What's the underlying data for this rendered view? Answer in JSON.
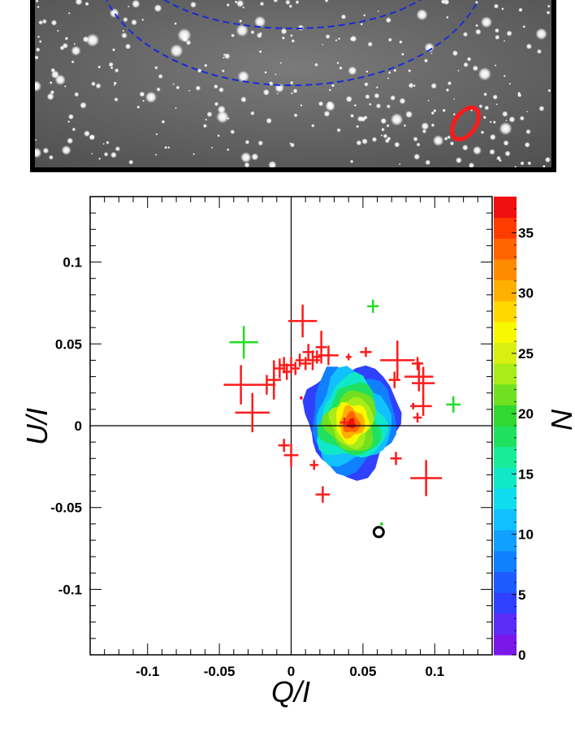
{
  "image_panel": {
    "ellipse_color_inner": "#1a2adc",
    "ellipse_color_outer": "#1a2adc",
    "marker_color": "#ff1a1a"
  },
  "chart_data": {
    "type": "scatter",
    "xlabel": "Q/I",
    "ylabel": "U/I",
    "xlim": [
      -0.14,
      0.14
    ],
    "ylim": [
      -0.14,
      0.14
    ],
    "x_ticks": [
      -0.1,
      -0.05,
      0,
      0.05,
      0.1
    ],
    "x_tick_labels": [
      "-0.1",
      "-0.05",
      "0",
      "0.05",
      "0.1"
    ],
    "y_ticks": [
      -0.1,
      -0.05,
      0,
      0.05,
      0.1
    ],
    "y_tick_labels": [
      "-0.1",
      "-0.05",
      "0",
      "0.05",
      "0.1"
    ],
    "grid": false,
    "reference_lines": {
      "x": 0,
      "y": 0
    },
    "colorbar": {
      "min": 0,
      "max": 38,
      "ticks": [
        0,
        5,
        10,
        15,
        20,
        25,
        30,
        35
      ],
      "tick_labels": [
        "0",
        "5",
        "10",
        "15",
        "20",
        "25",
        "30",
        "35"
      ],
      "colors": [
        "#7a18e8",
        "#5a2ef5",
        "#3040ff",
        "#1e5cff",
        "#1080ff",
        "#10a0ff",
        "#10c0ff",
        "#10dcf0",
        "#10e8c8",
        "#18ec98",
        "#20e060",
        "#30d830",
        "#70e020",
        "#a8ec18",
        "#d8f010",
        "#f8f800",
        "#ffd800",
        "#ffb000",
        "#ff8c00",
        "#ff6400",
        "#ff3c00",
        "#f01010"
      ]
    },
    "series": [
      {
        "color": "#ff1a1a",
        "points": [
          {
            "x": -0.035,
            "y": 0.025,
            "xerr": 0.012,
            "yerr": 0.012
          },
          {
            "x": -0.027,
            "y": 0.008,
            "xerr": 0.012,
            "yerr": 0.012
          },
          {
            "x": -0.017,
            "y": 0.025,
            "xerr": 0.006,
            "yerr": 0.006
          },
          {
            "x": -0.012,
            "y": 0.028,
            "xerr": 0.005,
            "yerr": 0.012
          },
          {
            "x": -0.008,
            "y": 0.035,
            "xerr": 0.004,
            "yerr": 0.006
          },
          {
            "x": -0.005,
            "y": 0.037,
            "xerr": 0.003,
            "yerr": 0.005
          },
          {
            "x": -0.003,
            "y": 0.033,
            "xerr": 0.003,
            "yerr": 0.005
          },
          {
            "x": 0,
            "y": 0.037,
            "xerr": 0.003,
            "yerr": 0.005
          },
          {
            "x": 0.003,
            "y": 0.035,
            "xerr": 0.003,
            "yerr": 0.004
          },
          {
            "x": 0.006,
            "y": 0.04,
            "xerr": 0.003,
            "yerr": 0.004
          },
          {
            "x": 0.01,
            "y": 0.038,
            "xerr": 0.004,
            "yerr": 0.004
          },
          {
            "x": 0.012,
            "y": 0.045,
            "xerr": 0.004,
            "yerr": 0.005
          },
          {
            "x": 0.015,
            "y": 0.04,
            "xerr": 0.005,
            "yerr": 0.006
          },
          {
            "x": 0.018,
            "y": 0.042,
            "xerr": 0.003,
            "yerr": 0.004
          },
          {
            "x": 0.021,
            "y": 0.048,
            "xerr": 0.004,
            "yerr": 0.01
          },
          {
            "x": 0.026,
            "y": 0.043,
            "xerr": 0.007,
            "yerr": 0.006
          },
          {
            "x": 0.008,
            "y": 0.064,
            "xerr": 0.01,
            "yerr": 0.01
          },
          {
            "x": 0.04,
            "y": 0.042,
            "xerr": 0.002,
            "yerr": 0.002
          },
          {
            "x": 0.052,
            "y": 0.045,
            "xerr": 0.004,
            "yerr": 0.003
          },
          {
            "x": 0.074,
            "y": 0.04,
            "xerr": 0.012,
            "yerr": 0.012
          },
          {
            "x": 0.072,
            "y": 0.028,
            "xerr": 0.004,
            "yerr": 0.005
          },
          {
            "x": 0.088,
            "y": 0.038,
            "xerr": 0.004,
            "yerr": 0.004
          },
          {
            "x": 0.089,
            "y": 0.03,
            "xerr": 0.01,
            "yerr": 0.009
          },
          {
            "x": 0.092,
            "y": 0.026,
            "xerr": 0.008,
            "yerr": 0.01
          },
          {
            "x": 0.092,
            "y": 0.012,
            "xerr": 0.006,
            "yerr": 0.006
          },
          {
            "x": 0.088,
            "y": 0.005,
            "xerr": 0.003,
            "yerr": 0.003
          },
          {
            "x": 0.085,
            "y": 0.012,
            "xerr": 0.002,
            "yerr": 0.002
          },
          {
            "x": 0.007,
            "y": 0.017,
            "xerr": 0.001,
            "yerr": 0.001
          },
          {
            "x": -0.005,
            "y": -0.012,
            "xerr": 0.004,
            "yerr": 0.004
          },
          {
            "x": 0.0,
            "y": -0.018,
            "xerr": 0.005,
            "yerr": 0.007
          },
          {
            "x": 0.016,
            "y": -0.024,
            "xerr": 0.003,
            "yerr": 0.003
          },
          {
            "x": 0.022,
            "y": -0.042,
            "xerr": 0.005,
            "yerr": 0.005
          },
          {
            "x": 0.073,
            "y": -0.02,
            "xerr": 0.004,
            "yerr": 0.004
          },
          {
            "x": 0.094,
            "y": -0.032,
            "xerr": 0.011,
            "yerr": 0.011
          },
          {
            "x": 0.037,
            "y": 0.002,
            "xerr": 0.003,
            "yerr": 0.003
          }
        ]
      },
      {
        "color": "#22dd22",
        "points": [
          {
            "x": -0.033,
            "y": 0.051,
            "xerr": 0.01,
            "yerr": 0.01
          },
          {
            "x": 0.057,
            "y": 0.073,
            "xerr": 0.004,
            "yerr": 0.004
          },
          {
            "x": 0.113,
            "y": 0.013,
            "xerr": 0.005,
            "yerr": 0.005
          },
          {
            "x": 0.063,
            "y": -0.06,
            "xerr": 0.001,
            "yerr": 0.001
          }
        ]
      }
    ],
    "reference_marker": {
      "x": 0.061,
      "y": -0.065,
      "color": "#000000"
    }
  }
}
